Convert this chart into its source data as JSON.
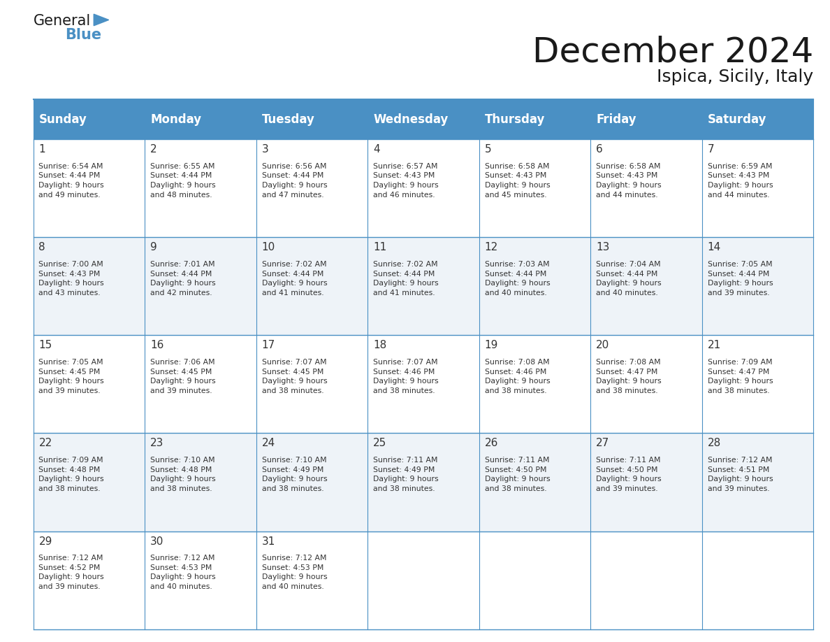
{
  "title": "December 2024",
  "subtitle": "Ispica, Sicily, Italy",
  "header_color": "#4A90C4",
  "header_text_color": "#FFFFFF",
  "days_of_week": [
    "Sunday",
    "Monday",
    "Tuesday",
    "Wednesday",
    "Thursday",
    "Friday",
    "Saturday"
  ],
  "weeks": [
    [
      {
        "day": 1,
        "sunrise": "6:54 AM",
        "sunset": "4:44 PM",
        "daylight": "9 hours and 49 minutes."
      },
      {
        "day": 2,
        "sunrise": "6:55 AM",
        "sunset": "4:44 PM",
        "daylight": "9 hours and 48 minutes."
      },
      {
        "day": 3,
        "sunrise": "6:56 AM",
        "sunset": "4:44 PM",
        "daylight": "9 hours and 47 minutes."
      },
      {
        "day": 4,
        "sunrise": "6:57 AM",
        "sunset": "4:43 PM",
        "daylight": "9 hours and 46 minutes."
      },
      {
        "day": 5,
        "sunrise": "6:58 AM",
        "sunset": "4:43 PM",
        "daylight": "9 hours and 45 minutes."
      },
      {
        "day": 6,
        "sunrise": "6:58 AM",
        "sunset": "4:43 PM",
        "daylight": "9 hours and 44 minutes."
      },
      {
        "day": 7,
        "sunrise": "6:59 AM",
        "sunset": "4:43 PM",
        "daylight": "9 hours and 44 minutes."
      }
    ],
    [
      {
        "day": 8,
        "sunrise": "7:00 AM",
        "sunset": "4:43 PM",
        "daylight": "9 hours and 43 minutes."
      },
      {
        "day": 9,
        "sunrise": "7:01 AM",
        "sunset": "4:44 PM",
        "daylight": "9 hours and 42 minutes."
      },
      {
        "day": 10,
        "sunrise": "7:02 AM",
        "sunset": "4:44 PM",
        "daylight": "9 hours and 41 minutes."
      },
      {
        "day": 11,
        "sunrise": "7:02 AM",
        "sunset": "4:44 PM",
        "daylight": "9 hours and 41 minutes."
      },
      {
        "day": 12,
        "sunrise": "7:03 AM",
        "sunset": "4:44 PM",
        "daylight": "9 hours and 40 minutes."
      },
      {
        "day": 13,
        "sunrise": "7:04 AM",
        "sunset": "4:44 PM",
        "daylight": "9 hours and 40 minutes."
      },
      {
        "day": 14,
        "sunrise": "7:05 AM",
        "sunset": "4:44 PM",
        "daylight": "9 hours and 39 minutes."
      }
    ],
    [
      {
        "day": 15,
        "sunrise": "7:05 AM",
        "sunset": "4:45 PM",
        "daylight": "9 hours and 39 minutes."
      },
      {
        "day": 16,
        "sunrise": "7:06 AM",
        "sunset": "4:45 PM",
        "daylight": "9 hours and 39 minutes."
      },
      {
        "day": 17,
        "sunrise": "7:07 AM",
        "sunset": "4:45 PM",
        "daylight": "9 hours and 38 minutes."
      },
      {
        "day": 18,
        "sunrise": "7:07 AM",
        "sunset": "4:46 PM",
        "daylight": "9 hours and 38 minutes."
      },
      {
        "day": 19,
        "sunrise": "7:08 AM",
        "sunset": "4:46 PM",
        "daylight": "9 hours and 38 minutes."
      },
      {
        "day": 20,
        "sunrise": "7:08 AM",
        "sunset": "4:47 PM",
        "daylight": "9 hours and 38 minutes."
      },
      {
        "day": 21,
        "sunrise": "7:09 AM",
        "sunset": "4:47 PM",
        "daylight": "9 hours and 38 minutes."
      }
    ],
    [
      {
        "day": 22,
        "sunrise": "7:09 AM",
        "sunset": "4:48 PM",
        "daylight": "9 hours and 38 minutes."
      },
      {
        "day": 23,
        "sunrise": "7:10 AM",
        "sunset": "4:48 PM",
        "daylight": "9 hours and 38 minutes."
      },
      {
        "day": 24,
        "sunrise": "7:10 AM",
        "sunset": "4:49 PM",
        "daylight": "9 hours and 38 minutes."
      },
      {
        "day": 25,
        "sunrise": "7:11 AM",
        "sunset": "4:49 PM",
        "daylight": "9 hours and 38 minutes."
      },
      {
        "day": 26,
        "sunrise": "7:11 AM",
        "sunset": "4:50 PM",
        "daylight": "9 hours and 38 minutes."
      },
      {
        "day": 27,
        "sunrise": "7:11 AM",
        "sunset": "4:50 PM",
        "daylight": "9 hours and 39 minutes."
      },
      {
        "day": 28,
        "sunrise": "7:12 AM",
        "sunset": "4:51 PM",
        "daylight": "9 hours and 39 minutes."
      }
    ],
    [
      {
        "day": 29,
        "sunrise": "7:12 AM",
        "sunset": "4:52 PM",
        "daylight": "9 hours and 39 minutes."
      },
      {
        "day": 30,
        "sunrise": "7:12 AM",
        "sunset": "4:53 PM",
        "daylight": "9 hours and 40 minutes."
      },
      {
        "day": 31,
        "sunrise": "7:12 AM",
        "sunset": "4:53 PM",
        "daylight": "9 hours and 40 minutes."
      },
      null,
      null,
      null,
      null
    ]
  ],
  "bg_color": "#FFFFFF",
  "cell_bg_color": "#FFFFFF",
  "alt_cell_bg_color": "#EEF3F8",
  "border_color": "#4A90C4",
  "text_color": "#333333",
  "day_num_font_size": 11,
  "cell_text_font_size": 7.8,
  "header_font_size": 12,
  "title_font_size": 36,
  "subtitle_font_size": 18,
  "logo_general_color": "#1a1a1a",
  "logo_blue_color": "#4A90C4",
  "title_color": "#1a1a1a"
}
